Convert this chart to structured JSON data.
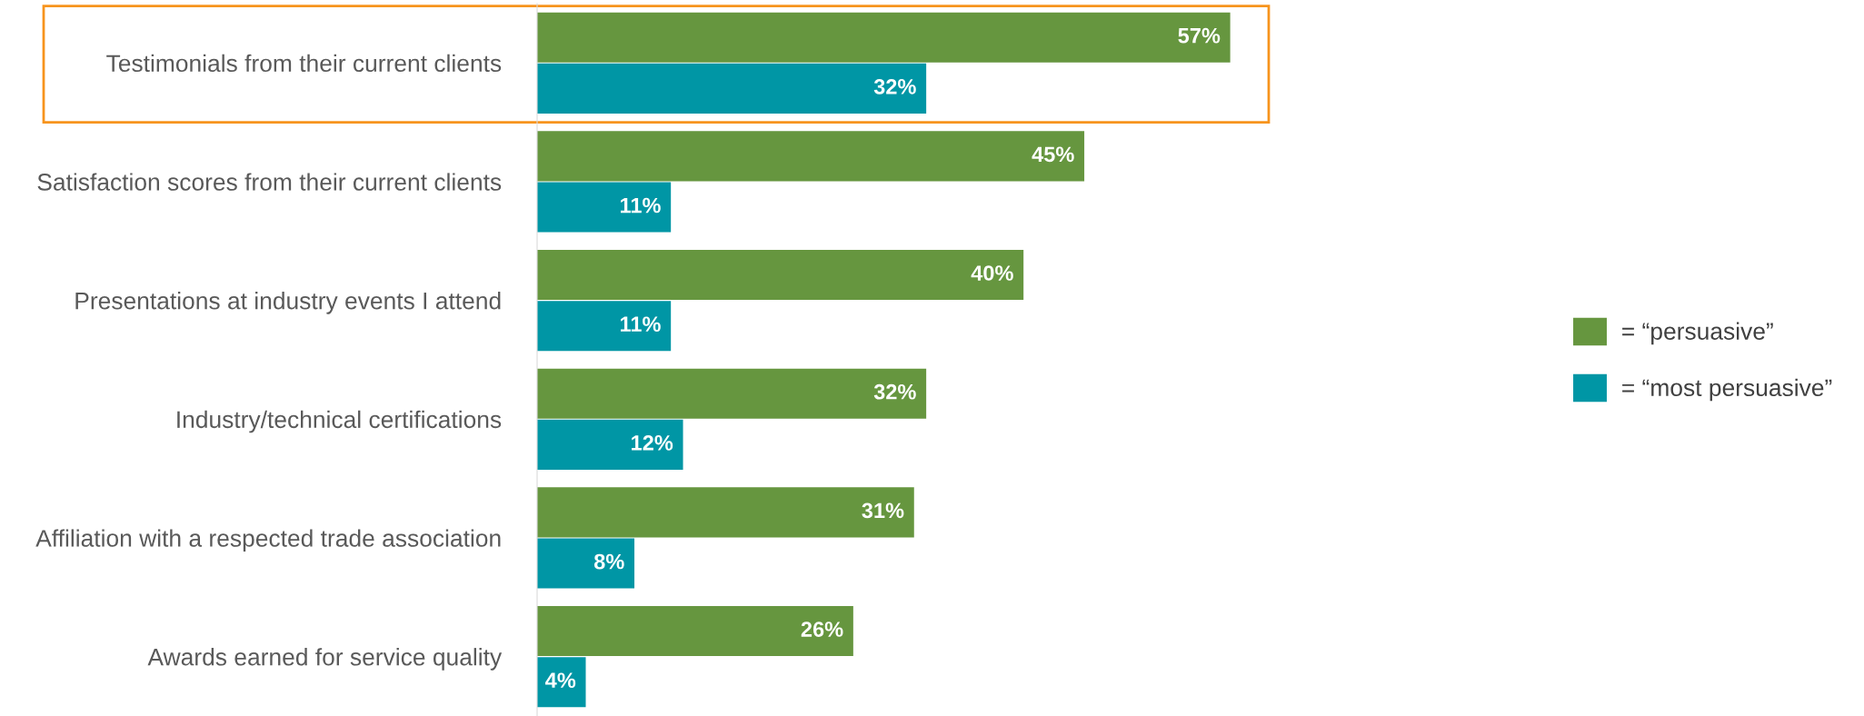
{
  "chart_data": {
    "type": "bar",
    "orientation": "horizontal",
    "categories": [
      "Testimonials from their current clients",
      "Satisfaction scores from their current clients",
      "Presentations at industry events I attend",
      "Industry/technical certifications",
      "Affiliation with a respected trade association",
      "Awards earned for service quality"
    ],
    "series": [
      {
        "name": "= “persuasive”",
        "color": "#66963f",
        "values": [
          57,
          45,
          40,
          32,
          31,
          26
        ],
        "value_labels": [
          "57%",
          "45%",
          "40%",
          "32%",
          "31%",
          "26%"
        ]
      },
      {
        "name": "= “most persuasive”",
        "color": "#0096a5",
        "values": [
          32,
          11,
          11,
          12,
          8,
          4
        ],
        "value_labels": [
          "32%",
          "11%",
          "11%",
          "12%",
          "8%",
          "4%"
        ]
      }
    ],
    "legend": "right",
    "tick_labels": "y",
    "grid": false
  }
}
